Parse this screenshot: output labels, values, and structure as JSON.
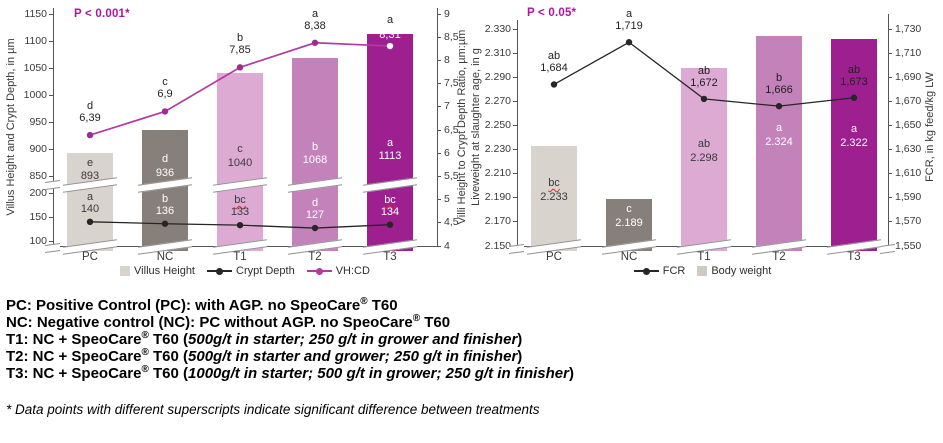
{
  "chart_data": [
    {
      "type": "bar+line",
      "p_label": "P < 0.001*",
      "categories": [
        "PC",
        "NC",
        "T1",
        "T2",
        "T3"
      ],
      "left_axis": {
        "label": "Villus Height and Crypt Depth, in µm",
        "broken": true,
        "upper_range": [
          850,
          1150
        ],
        "lower_range": [
          100,
          200
        ],
        "upper_ticks": [
          "1150",
          "1100",
          "1050",
          "1000",
          "950",
          "900",
          "850"
        ],
        "lower_ticks": [
          "200",
          "150",
          "100"
        ]
      },
      "right_axis": {
        "label": "Villi Height to Crypt Depth Ratio, µm:µm",
        "range": [
          4,
          9
        ],
        "ticks": [
          "9",
          "8,5",
          "8",
          "7,5",
          "7",
          "6,5",
          "6",
          "5,5",
          "5",
          "4,5",
          "4"
        ]
      },
      "bar_colors": [
        "#d8d3cd",
        "#87807a",
        "#dcaad3",
        "#c482bb",
        "#9e2090"
      ],
      "series": [
        {
          "name": "Villus Height",
          "type": "bar",
          "axis": "left-upper",
          "values": [
            893,
            936,
            1040,
            1068,
            1113
          ],
          "labels": [
            "893",
            "936",
            "1040",
            "1068",
            "1113"
          ],
          "letters": [
            "e",
            "d",
            "c",
            "b",
            "a"
          ],
          "label_colors": [
            "#3b3b3b",
            "#ffffff",
            "#3b3b3b",
            "#ffffff",
            "#ffffff"
          ]
        },
        {
          "name": "Crypt Depth",
          "type": "line",
          "axis": "left-lower",
          "color": "#262626",
          "values": [
            140,
            136,
            133,
            127,
            134
          ],
          "labels": [
            "140",
            "136",
            "133",
            "127",
            "134"
          ],
          "letters": [
            "a",
            "b",
            "bc",
            "d",
            "bc"
          ],
          "wavy": [
            false,
            false,
            true,
            false,
            true
          ],
          "label_colors": [
            "#3b3b3b",
            "#ffffff",
            "#3b3b3b",
            "#ffffff",
            "#ffffff"
          ]
        },
        {
          "name": "VH:CD",
          "type": "line",
          "axis": "right",
          "color": "#b23aa2",
          "marker_color": "#9c2d92",
          "values": [
            6.39,
            6.9,
            7.85,
            8.38,
            8.31
          ],
          "labels": [
            "6,39",
            "6,9",
            "7,85",
            "8,38",
            "8,31"
          ],
          "letters": [
            "d",
            "c",
            "b",
            "a",
            "a"
          ],
          "value_colors": [
            "#1f1f1f",
            "#1f1f1f",
            "#1f1f1f",
            "#1f1f1f",
            "#ffffff"
          ],
          "marker_colors": [
            null,
            null,
            null,
            null,
            "#ffffff"
          ]
        }
      ],
      "legend": [
        {
          "type": "square",
          "color": "#d8d3cd",
          "label": "Villus Height"
        },
        {
          "type": "line",
          "color": "#262626",
          "label": "Crypt Depth"
        },
        {
          "type": "line",
          "color": "#b23aa2",
          "label": "VH:CD"
        }
      ]
    },
    {
      "type": "bar+line",
      "p_label": "P < 0.05*",
      "categories": [
        "PC",
        "NC",
        "T1",
        "T2",
        "T3"
      ],
      "left_axis": {
        "label": "Liveweight at slaughter age, in g",
        "range": [
          2.15,
          2.33
        ],
        "ticks": [
          "2.330",
          "2.310",
          "2.290",
          "2.270",
          "2.250",
          "2.230",
          "2.210",
          "2.190",
          "2.170",
          "2.150"
        ]
      },
      "right_axis": {
        "label": "FCR, in kg feed/kg LW",
        "range": [
          1.55,
          1.73
        ],
        "ticks": [
          "1,730",
          "1,710",
          "1,690",
          "1,670",
          "1,650",
          "1,630",
          "1,610",
          "1,590",
          "1,570",
          "1,550"
        ]
      },
      "bar_colors": [
        "#d8d3cd",
        "#87807a",
        "#dcaad3",
        "#c482bb",
        "#9e2090"
      ],
      "series": [
        {
          "name": "Body weight",
          "type": "bar",
          "axis": "left",
          "values": [
            2.233,
            2.189,
            2.298,
            2.324,
            2.322
          ],
          "labels": [
            "2.233",
            "2.189",
            "2.298",
            "2.324",
            "2.322"
          ],
          "letters": [
            "bc",
            "c",
            "ab",
            "a",
            "a"
          ],
          "wavy": [
            true,
            false,
            false,
            false,
            false
          ],
          "label_colors": [
            "#3b3b3b",
            "#ffffff",
            "#3b3b3b",
            "#ffffff",
            "#ffffff"
          ]
        },
        {
          "name": "FCR",
          "type": "line",
          "axis": "right",
          "color": "#262626",
          "values": [
            1.684,
            1.719,
            1.672,
            1.666,
            1.673
          ],
          "labels": [
            "1,684",
            "1,719",
            "1,672",
            "1,666",
            "1,673"
          ],
          "letters": [
            "ab",
            "a",
            "ab",
            "b",
            "ab"
          ]
        }
      ],
      "legend": [
        {
          "type": "line",
          "color": "#262626",
          "label": "FCR"
        },
        {
          "type": "square",
          "color": "#cfcac4",
          "label": "Body weight"
        }
      ]
    }
  ],
  "footnotes": {
    "treatments": [
      {
        "prefix": "PC: Positive Control (PC): with AGP. no SpeoCare® T60",
        "italic": "",
        "suffix": ""
      },
      {
        "prefix": "NC: Negative control (NC): PC without AGP. no SpeoCare® T60",
        "italic": "",
        "suffix": ""
      },
      {
        "prefix": "T1: NC + SpeoCare® T60 (",
        "italic": "500g/t in starter; 250 g/t in grower and finisher",
        "suffix": ")"
      },
      {
        "prefix": "T2: NC + SpeoCare® T60 (",
        "italic": "500g/t in starter and grower; 250 g/t in finisher",
        "suffix": ")"
      },
      {
        "prefix": "T3: NC + SpeoCare® T60 (",
        "italic": "1000g/t in starter; 500 g/t in grower; 250 g/t in finisher",
        "suffix": ")"
      }
    ],
    "significance": "* Data points with different superscripts indicate significant difference between treatments"
  },
  "accent_colors": {
    "p_value": "#b014a0",
    "magenta_line": "#b23aa2",
    "axis_text": "#3a3a3a"
  }
}
